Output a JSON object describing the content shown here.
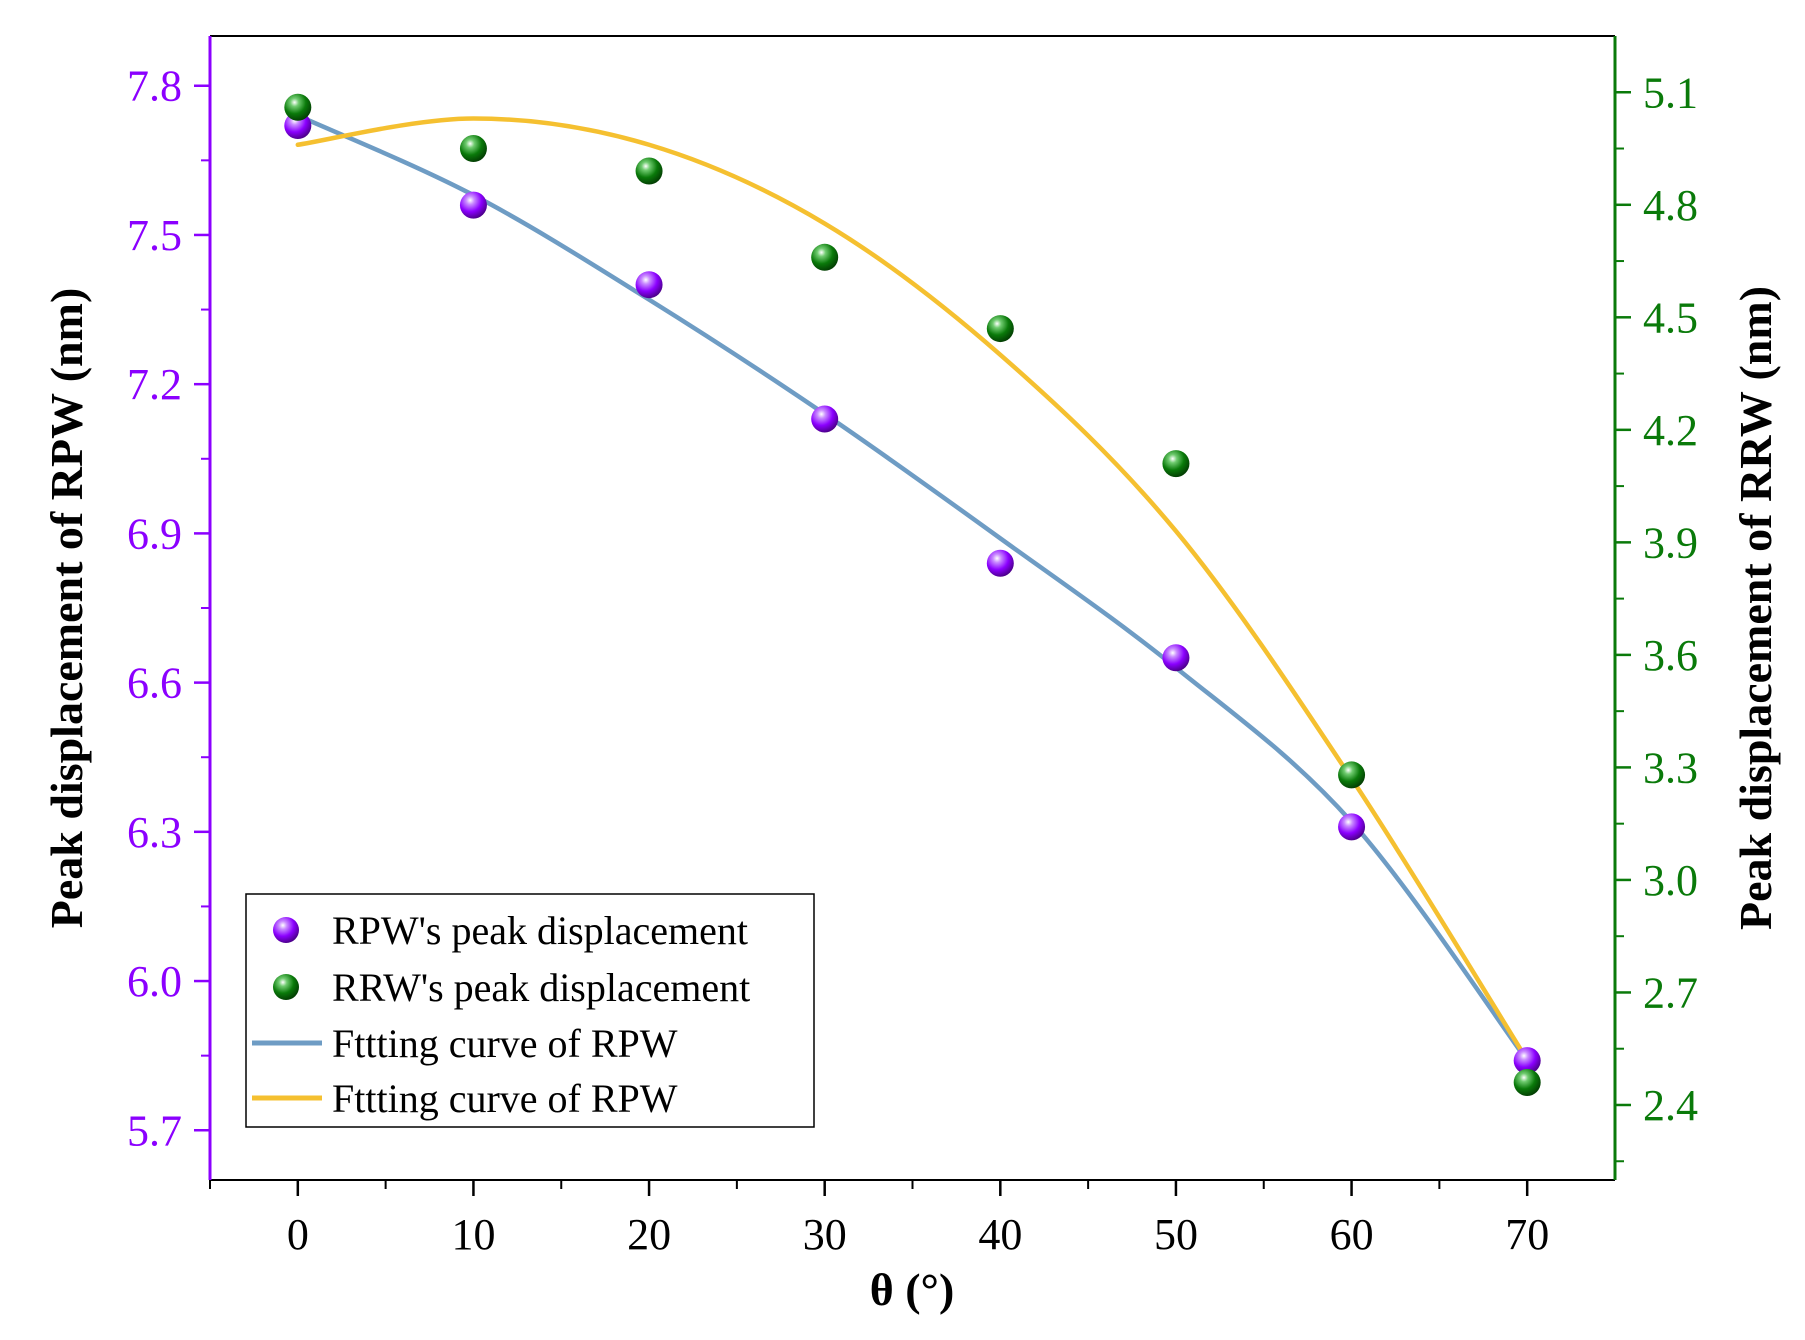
{
  "chart_data": {
    "type": "scatter",
    "title": "",
    "x": [
      0,
      10,
      20,
      30,
      40,
      50,
      60,
      70
    ],
    "xlabel": "θ (°)",
    "xlim": [
      -5,
      75
    ],
    "xticks": [
      0,
      10,
      20,
      30,
      40,
      50,
      60,
      70
    ],
    "ylabel_left": "Peak displacement of RPW (nm)",
    "ylim_left": [
      5.6,
      7.9
    ],
    "yticks_left": [
      5.7,
      6.0,
      6.3,
      6.6,
      6.9,
      7.2,
      7.5,
      7.8
    ],
    "ylabel_right": "Peak displacement of RRW (nm)",
    "ylim_right": [
      2.2,
      5.25
    ],
    "yticks_right": [
      2.4,
      2.7,
      3.0,
      3.3,
      3.6,
      3.9,
      4.2,
      4.5,
      4.8,
      5.1
    ],
    "series": [
      {
        "name": "RPW's peak displacement",
        "axis": "left",
        "kind": "scatter",
        "color": "#8B00FF",
        "values": [
          7.72,
          7.56,
          7.4,
          7.13,
          6.84,
          6.65,
          6.31,
          5.84
        ]
      },
      {
        "name": "RRW's peak displacement",
        "axis": "right",
        "kind": "scatter",
        "color": "#0A7A0A",
        "values": [
          5.06,
          4.95,
          4.89,
          4.66,
          4.47,
          4.11,
          3.28,
          2.46
        ]
      },
      {
        "name": "Fttting curve of RPW",
        "axis": "left",
        "kind": "line",
        "color": "#6E9CC4",
        "values": [
          7.74,
          7.58,
          7.37,
          7.14,
          6.89,
          6.63,
          6.32,
          5.84
        ]
      },
      {
        "name": "Fttting curve of RPW",
        "axis": "right",
        "kind": "line",
        "color": "#F5C030",
        "values": [
          4.96,
          5.03,
          4.96,
          4.75,
          4.4,
          3.93,
          3.27,
          2.52
        ]
      }
    ],
    "legend": {
      "position": "bottom-left",
      "entries": [
        "RPW's peak displacement",
        "RRW's peak displacement",
        "Fttting curve of RPW",
        "Fttting curve of RPW"
      ]
    },
    "colors": {
      "left_axis": "#8B00FF",
      "right_axis": "#0A7A0A",
      "bottom_axis": "#000000"
    }
  }
}
